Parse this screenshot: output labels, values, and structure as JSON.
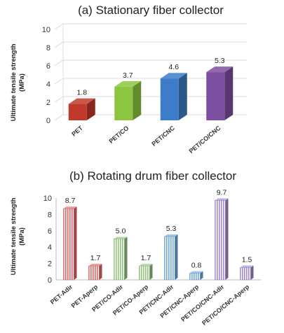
{
  "chart_data": [
    {
      "type": "bar",
      "title": "(a) Stationary fiber collector",
      "ylabel": "Ultimate tensile strength (MPa)",
      "ylabel_lines": [
        "Ultimate tensile strength",
        "(MPa)"
      ],
      "categories": [
        "PET",
        "PET/CO",
        "PET/CNC",
        "PET/CO/CNC"
      ],
      "values": [
        1.8,
        3.7,
        4.6,
        5.3
      ],
      "data_labels": [
        "1.8",
        "3.7",
        "4.6",
        "5.3"
      ],
      "colors": [
        "#c0392b",
        "#8cc63f",
        "#3d7cc9",
        "#7d4fa0"
      ],
      "ylim": [
        0,
        10
      ],
      "yticks": [
        "0",
        "2",
        "4",
        "6",
        "8",
        "10"
      ],
      "grid": true,
      "style": "3d-solid"
    },
    {
      "type": "bar",
      "title": "(b) Rotating drum fiber collector",
      "ylabel": "Ultimate tensile strength (MPa)",
      "ylabel_lines": [
        "Ultimate tensile strength",
        "(MPa)"
      ],
      "categories": [
        "PET-Adir",
        "PET-Aperp",
        "PET/CO-Adir",
        "PET/CO-Aperp",
        "PET/CNC-Adir",
        "PET/CNC-Aperp",
        "PET/CO/CNC-Adir",
        "PET/CO/CNC-Aperp"
      ],
      "values": [
        8.7,
        1.7,
        5.0,
        1.7,
        5.3,
        0.8,
        9.7,
        1.5
      ],
      "data_labels": [
        "8.7",
        "1.7",
        "5.0",
        "1.7",
        "5.3",
        "0.8",
        "9.7",
        "1.5"
      ],
      "colors": [
        "#e06666",
        "#e06666",
        "#93c47d",
        "#93c47d",
        "#6fa8dc",
        "#6fa8dc",
        "#a28ad0",
        "#a28ad0"
      ],
      "ylim": [
        0,
        10
      ],
      "yticks": [
        "0",
        "2",
        "4",
        "6",
        "8",
        "10"
      ],
      "grid": false,
      "style": "3d-striped"
    }
  ]
}
